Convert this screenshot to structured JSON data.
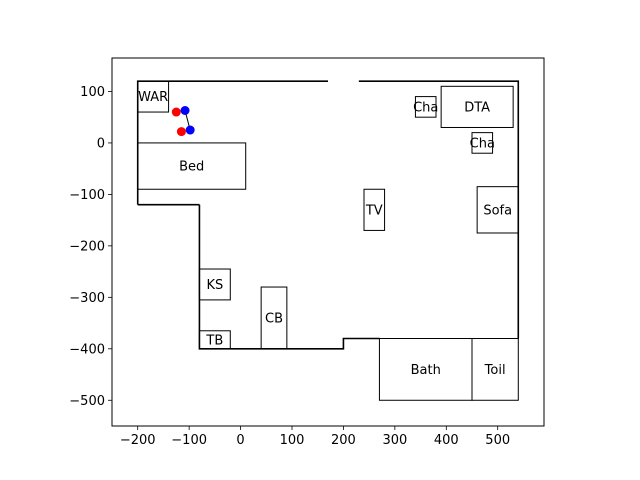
{
  "chart_data": {
    "type": "scatter",
    "xlim": [
      -250,
      590
    ],
    "ylim": [
      -550,
      165
    ],
    "xticks": [
      -200,
      -100,
      0,
      100,
      200,
      300,
      400,
      500
    ],
    "yticks": [
      100,
      0,
      -100,
      -200,
      -300,
      -400,
      -500
    ],
    "xtick_labels": [
      "−200",
      "−100",
      "0",
      "100",
      "200",
      "300",
      "400",
      "500"
    ],
    "ytick_labels": [
      "100",
      "0",
      "−100",
      "−200",
      "−300",
      "−400",
      "−500"
    ],
    "grid": false,
    "walls": [
      [
        [
          -200,
          -120
        ],
        [
          -200,
          120
        ],
        [
          170,
          120
        ]
      ],
      [
        [
          230,
          120
        ],
        [
          540,
          120
        ],
        [
          540,
          -380
        ]
      ],
      [
        [
          -80,
          -120
        ],
        [
          -80,
          -400
        ],
        [
          200,
          -400
        ],
        [
          200,
          -380
        ],
        [
          270,
          -380
        ]
      ]
    ],
    "wall_stub": [
      [
        -200,
        -120
      ],
      [
        -80,
        -120
      ]
    ],
    "furniture": [
      {
        "label": "WAR",
        "x0": -200,
        "y0": 60,
        "x1": -140,
        "y1": 120
      },
      {
        "label": "Bed",
        "x0": -200,
        "y0": -90,
        "x1": 10,
        "y1": 0
      },
      {
        "label": "Cha",
        "x0": 340,
        "y0": 50,
        "x1": 380,
        "y1": 90
      },
      {
        "label": "DTA",
        "x0": 390,
        "y0": 30,
        "x1": 530,
        "y1": 110
      },
      {
        "label": "Cha",
        "x0": 450,
        "y0": -20,
        "x1": 490,
        "y1": 20
      },
      {
        "label": "TV",
        "x0": 240,
        "y0": -170,
        "x1": 280,
        "y1": -90
      },
      {
        "label": "Sofa",
        "x0": 460,
        "y0": -175,
        "x1": 540,
        "y1": -85
      },
      {
        "label": "KS",
        "x0": -80,
        "y0": -305,
        "x1": -20,
        "y1": -245
      },
      {
        "label": "CB",
        "x0": 40,
        "y0": -400,
        "x1": 90,
        "y1": -280
      },
      {
        "label": "TB",
        "x0": -80,
        "y0": -400,
        "x1": -20,
        "y1": -365
      },
      {
        "label": "Bath",
        "x0": 270,
        "y0": -500,
        "x1": 450,
        "y1": -380
      },
      {
        "label": "Toil",
        "x0": 450,
        "y0": -500,
        "x1": 540,
        "y1": -380
      }
    ],
    "points": [
      {
        "x": -125,
        "y": 60,
        "color": "#ff0000"
      },
      {
        "x": -108,
        "y": 63,
        "color": "#0000ff"
      },
      {
        "x": -115,
        "y": 22,
        "color": "#ff0000"
      },
      {
        "x": -98,
        "y": 25,
        "color": "#0000ff"
      }
    ],
    "connectors": [
      [
        [
          -108,
          63
        ],
        [
          -98,
          25
        ]
      ]
    ]
  }
}
